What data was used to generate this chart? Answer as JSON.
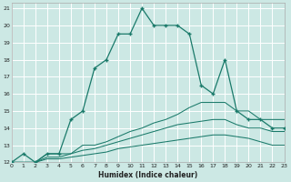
{
  "xlabel": "Humidex (Indice chaleur)",
  "bg_color": "#cce8e4",
  "grid_color": "#ffffff",
  "line_color": "#1a7a6a",
  "x_min": 0,
  "x_max": 23,
  "y_min": 12,
  "y_max": 21,
  "line1_x": [
    0,
    1,
    2,
    3,
    4,
    5,
    6,
    7,
    8,
    9,
    10,
    11,
    12,
    13,
    14,
    15,
    16,
    17,
    18,
    19,
    20,
    21,
    22,
    23
  ],
  "line1_y": [
    12.0,
    12.5,
    12.0,
    12.5,
    12.5,
    14.5,
    15.0,
    17.5,
    18.0,
    19.5,
    19.5,
    21.0,
    20.0,
    20.0,
    20.0,
    19.5,
    16.5,
    16.0,
    18.0,
    15.0,
    14.5,
    14.5,
    14.0,
    14.0
  ],
  "line2_x": [
    0,
    1,
    2,
    3,
    4,
    5,
    6,
    7,
    8,
    9,
    10,
    11,
    12,
    13,
    14,
    15,
    16,
    17,
    18,
    19,
    20,
    21,
    22,
    23
  ],
  "line2_y": [
    12.0,
    12.0,
    12.0,
    12.5,
    12.5,
    12.5,
    13.0,
    13.0,
    13.2,
    13.5,
    13.8,
    14.0,
    14.3,
    14.5,
    14.8,
    15.2,
    15.5,
    15.5,
    15.5,
    15.0,
    15.0,
    14.5,
    14.5,
    14.5
  ],
  "line3_x": [
    0,
    1,
    2,
    3,
    4,
    5,
    6,
    7,
    8,
    9,
    10,
    11,
    12,
    13,
    14,
    15,
    16,
    17,
    18,
    19,
    20,
    21,
    22,
    23
  ],
  "line3_y": [
    12.0,
    12.0,
    12.0,
    12.3,
    12.3,
    12.5,
    12.7,
    12.8,
    13.0,
    13.2,
    13.4,
    13.6,
    13.8,
    14.0,
    14.2,
    14.3,
    14.4,
    14.5,
    14.5,
    14.2,
    14.0,
    14.0,
    13.8,
    13.8
  ],
  "line4_x": [
    0,
    1,
    2,
    3,
    4,
    5,
    6,
    7,
    8,
    9,
    10,
    11,
    12,
    13,
    14,
    15,
    16,
    17,
    18,
    19,
    20,
    21,
    22,
    23
  ],
  "line4_y": [
    12.0,
    12.0,
    12.0,
    12.2,
    12.2,
    12.3,
    12.4,
    12.5,
    12.6,
    12.8,
    12.9,
    13.0,
    13.1,
    13.2,
    13.3,
    13.4,
    13.5,
    13.6,
    13.6,
    13.5,
    13.4,
    13.2,
    13.0,
    13.0
  ]
}
